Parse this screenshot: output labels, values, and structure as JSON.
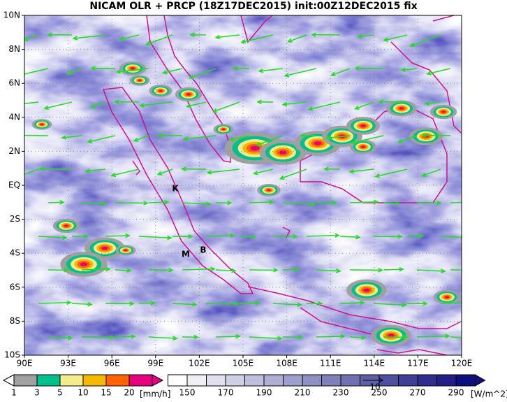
{
  "title": "NICAM OLR + PRCP (18Z17DEC2015) init:00Z12DEC2015 fix",
  "map": {
    "lat_labels": [
      "10N",
      "8N",
      "6N",
      "4N",
      "2N",
      "EQ",
      "2S",
      "4S",
      "6S",
      "8S",
      "10S"
    ],
    "lon_labels": [
      "90E",
      "93E",
      "96E",
      "99E",
      "102E",
      "105E",
      "108E",
      "111E",
      "114E",
      "117E",
      "120E"
    ],
    "sites": [
      "K",
      "M",
      "B"
    ],
    "vector_scale": "10"
  },
  "precip_legend": {
    "levels": [
      1,
      3,
      5,
      10,
      15,
      20
    ],
    "colors": [
      "#ffffff",
      "#a0a0a0",
      "#00c08c",
      "#f5eb8c",
      "#f5b800",
      "#ff6400",
      "#e6007d"
    ],
    "unit": "[mm/h]"
  },
  "olr_legend": {
    "levels": [
      150,
      170,
      190,
      210,
      230,
      250,
      270,
      290
    ],
    "unit": "[W/m^2]"
  }
}
